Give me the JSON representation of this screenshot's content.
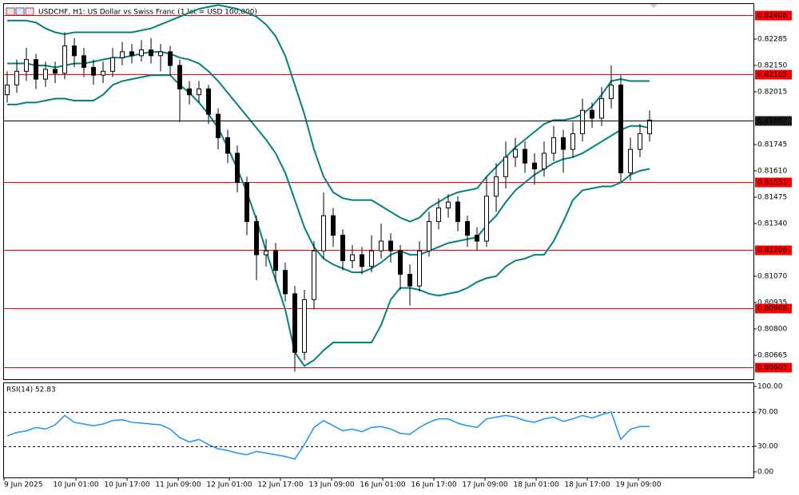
{
  "chart_data": [
    {
      "type": "candlestick",
      "title": "USDCHF, H1:  US Dollar vs Swiss Franc (1 lot = USD 100,000)",
      "ylim": [
        0.80542,
        0.82465
      ],
      "yticks": [
        {
          "value": 0.80665,
          "label": "0.80665"
        },
        {
          "value": 0.808,
          "label": "0.80800"
        },
        {
          "value": 0.80935,
          "label": "0.80935"
        },
        {
          "value": 0.8107,
          "label": "0.81070"
        },
        {
          "value": 0.8134,
          "label": "0.81340"
        },
        {
          "value": 0.81475,
          "label": "0.81475"
        },
        {
          "value": 0.8161,
          "label": "0.81610"
        },
        {
          "value": 0.81745,
          "label": "0.81745"
        },
        {
          "value": 0.82015,
          "label": "0.82015"
        },
        {
          "value": 0.8215,
          "label": "0.82150"
        },
        {
          "value": 0.82285,
          "label": "0.82285"
        }
      ],
      "x_labels": [
        "9 Jun 2025",
        "10 Jun 01:00",
        "10 Jun 17:00",
        "11 Jun 09:00",
        "12 Jun 01:00",
        "12 Jun 17:00",
        "13 Jun 09:00",
        "16 Jun 01:00",
        "16 Jun 17:00",
        "17 Jun 09:00",
        "18 Jun 01:00",
        "18 Jun 17:00",
        "19 Jun 09:00"
      ],
      "levels": [
        0.82408,
        0.82105,
        0.81551,
        0.81206,
        0.80908,
        0.80603
      ],
      "level_color": "#ff0000",
      "current_price": 0.81867,
      "open": [
        0.82,
        0.8205,
        0.8212,
        0.8218,
        0.8208,
        0.8213,
        0.8211,
        0.8225,
        0.822,
        0.8214,
        0.821,
        0.8212,
        0.8219,
        0.8222,
        0.822,
        0.8223,
        0.822,
        0.8222,
        0.8215,
        0.8203,
        0.82,
        0.8203,
        0.819,
        0.8178,
        0.817,
        0.8155,
        0.8135,
        0.8118,
        0.812,
        0.811,
        0.8098,
        0.8068,
        0.8095,
        0.812,
        0.8138,
        0.8128,
        0.8115,
        0.8118,
        0.8112,
        0.812,
        0.8125,
        0.812,
        0.8108,
        0.8102,
        0.812,
        0.8135,
        0.8142,
        0.8145,
        0.8135,
        0.8128,
        0.8125,
        0.8148,
        0.8158,
        0.8168,
        0.8172,
        0.8165,
        0.8162,
        0.817,
        0.8178,
        0.8172,
        0.818,
        0.8192,
        0.8188,
        0.8198,
        0.8205,
        0.816,
        0.8172,
        0.818
      ],
      "high": [
        0.8212,
        0.8218,
        0.8224,
        0.8221,
        0.8217,
        0.8217,
        0.8232,
        0.8229,
        0.8224,
        0.8218,
        0.8217,
        0.8224,
        0.8227,
        0.8226,
        0.8228,
        0.8229,
        0.8226,
        0.8225,
        0.8218,
        0.8207,
        0.8207,
        0.8205,
        0.8193,
        0.8182,
        0.8174,
        0.8158,
        0.8138,
        0.8126,
        0.8124,
        0.8114,
        0.8102,
        0.81,
        0.8125,
        0.815,
        0.8142,
        0.8131,
        0.8123,
        0.8122,
        0.8128,
        0.8134,
        0.8129,
        0.8123,
        0.8113,
        0.8125,
        0.814,
        0.8147,
        0.8149,
        0.8148,
        0.8138,
        0.8132,
        0.8158,
        0.8165,
        0.8176,
        0.8178,
        0.8176,
        0.817,
        0.8176,
        0.8184,
        0.8182,
        0.8186,
        0.8198,
        0.8196,
        0.8204,
        0.8215,
        0.821,
        0.8178,
        0.8185,
        0.8192
      ],
      "low": [
        0.8196,
        0.8201,
        0.8207,
        0.8203,
        0.8204,
        0.8206,
        0.8208,
        0.8214,
        0.8209,
        0.8205,
        0.8206,
        0.8209,
        0.8215,
        0.8216,
        0.8217,
        0.8216,
        0.8212,
        0.821,
        0.8186,
        0.8195,
        0.8196,
        0.8185,
        0.8172,
        0.8165,
        0.815,
        0.8128,
        0.8105,
        0.8112,
        0.8104,
        0.8094,
        0.8058,
        0.8064,
        0.809,
        0.8116,
        0.8122,
        0.811,
        0.8111,
        0.8108,
        0.8109,
        0.8116,
        0.8114,
        0.81,
        0.8092,
        0.8099,
        0.8117,
        0.8131,
        0.8137,
        0.813,
        0.8122,
        0.812,
        0.8122,
        0.814,
        0.8152,
        0.8163,
        0.816,
        0.8154,
        0.8158,
        0.8166,
        0.816,
        0.8168,
        0.8176,
        0.8183,
        0.8184,
        0.8193,
        0.8155,
        0.8156,
        0.8168,
        0.8176
      ],
      "close": [
        0.8205,
        0.8212,
        0.8218,
        0.8208,
        0.8213,
        0.8211,
        0.8225,
        0.822,
        0.8214,
        0.821,
        0.8212,
        0.8219,
        0.8222,
        0.822,
        0.8223,
        0.822,
        0.8222,
        0.8215,
        0.8203,
        0.82,
        0.8203,
        0.819,
        0.8178,
        0.817,
        0.8155,
        0.8135,
        0.8118,
        0.812,
        0.811,
        0.8098,
        0.8068,
        0.8095,
        0.812,
        0.8138,
        0.8128,
        0.8115,
        0.8118,
        0.8112,
        0.812,
        0.8125,
        0.812,
        0.8108,
        0.8102,
        0.812,
        0.8135,
        0.8142,
        0.8145,
        0.8135,
        0.8128,
        0.8125,
        0.8148,
        0.8158,
        0.8168,
        0.8172,
        0.8165,
        0.8162,
        0.817,
        0.8178,
        0.8172,
        0.818,
        0.8192,
        0.8188,
        0.8198,
        0.8205,
        0.816,
        0.8172,
        0.818,
        0.8187
      ],
      "bands": [
        {
          "color": "#008080",
          "values": [
            0.8238,
            0.8238,
            0.8238,
            0.8237,
            0.8234,
            0.8232,
            0.8231,
            0.8232,
            0.8232,
            0.8232,
            0.8232,
            0.8232,
            0.8232,
            0.8232,
            0.8233,
            0.8234,
            0.8236,
            0.8238,
            0.824,
            0.8242,
            0.8244,
            0.8245,
            0.8246,
            0.8245,
            0.8244,
            0.8242,
            0.824,
            0.8236,
            0.823,
            0.822,
            0.8205,
            0.819,
            0.8172,
            0.8158,
            0.815,
            0.8147,
            0.8146,
            0.8146,
            0.8146,
            0.8143,
            0.814,
            0.8137,
            0.8135,
            0.8137,
            0.8142,
            0.8145,
            0.8148,
            0.815,
            0.8151,
            0.8152,
            0.8158,
            0.8163,
            0.8168,
            0.8173,
            0.8177,
            0.8181,
            0.8185,
            0.8187,
            0.8187,
            0.8188,
            0.819,
            0.8194,
            0.82,
            0.8207,
            0.8208,
            0.8207,
            0.8207,
            0.8207
          ]
        },
        {
          "color": "#008080",
          "values": [
            0.8216,
            0.8216,
            0.8216,
            0.8215,
            0.8215,
            0.8214,
            0.8215,
            0.8216,
            0.8216,
            0.8217,
            0.8218,
            0.8219,
            0.8219,
            0.822,
            0.8221,
            0.8222,
            0.8222,
            0.8221,
            0.8219,
            0.8218,
            0.8216,
            0.8212,
            0.8207,
            0.8201,
            0.8195,
            0.8189,
            0.8183,
            0.8177,
            0.817,
            0.816,
            0.8146,
            0.8132,
            0.8122,
            0.8116,
            0.8113,
            0.8111,
            0.8109,
            0.8109,
            0.8111,
            0.8114,
            0.8118,
            0.812,
            0.8118,
            0.8118,
            0.812,
            0.8122,
            0.8124,
            0.8125,
            0.8126,
            0.8127,
            0.8133,
            0.8138,
            0.8145,
            0.8151,
            0.8155,
            0.8159,
            0.8162,
            0.8165,
            0.8167,
            0.8168,
            0.817,
            0.8173,
            0.8176,
            0.8179,
            0.8182,
            0.8184,
            0.8184,
            0.8183
          ]
        },
        {
          "color": "#008080",
          "values": [
            0.8195,
            0.8195,
            0.8196,
            0.8196,
            0.8197,
            0.8198,
            0.8198,
            0.8197,
            0.8197,
            0.8197,
            0.82,
            0.8205,
            0.8207,
            0.8208,
            0.8209,
            0.821,
            0.821,
            0.821,
            0.8205,
            0.8201,
            0.8196,
            0.819,
            0.8183,
            0.8173,
            0.8162,
            0.815,
            0.8136,
            0.812,
            0.8105,
            0.809,
            0.8068,
            0.8061,
            0.8064,
            0.8069,
            0.8073,
            0.8073,
            0.8073,
            0.8073,
            0.8073,
            0.8082,
            0.8095,
            0.8101,
            0.8101,
            0.81,
            0.8098,
            0.8097,
            0.8098,
            0.8099,
            0.8101,
            0.8104,
            0.8106,
            0.8107,
            0.8112,
            0.8115,
            0.8116,
            0.8118,
            0.8118,
            0.8125,
            0.8135,
            0.8146,
            0.8151,
            0.8152,
            0.8153,
            0.8153,
            0.8155,
            0.8159,
            0.8161,
            0.8162
          ]
        }
      ]
    },
    {
      "type": "line",
      "title": "RSI(14) 52.83",
      "color": "#1e90ff",
      "ylim": [
        -6.5,
        103.7
      ],
      "yticks": [
        {
          "value": 0,
          "label": "0.00"
        },
        {
          "value": 30,
          "label": "30.00"
        },
        {
          "value": 70,
          "label": "70.00"
        },
        {
          "value": 100,
          "label": "100.00"
        }
      ],
      "levels": [
        70,
        30
      ],
      "values": [
        42,
        46,
        48,
        52,
        50,
        55,
        66,
        58,
        56,
        54,
        56,
        60,
        61,
        58,
        57,
        56,
        55,
        50,
        40,
        35,
        38,
        32,
        27,
        25,
        22,
        20,
        24,
        22,
        20,
        18,
        15,
        32,
        52,
        60,
        54,
        48,
        50,
        47,
        52,
        53,
        50,
        45,
        44,
        52,
        58,
        62,
        62,
        57,
        54,
        52,
        62,
        64,
        66,
        64,
        60,
        58,
        62,
        64,
        59,
        62,
        66,
        63,
        67,
        70,
        38,
        50,
        53,
        53
      ]
    }
  ]
}
